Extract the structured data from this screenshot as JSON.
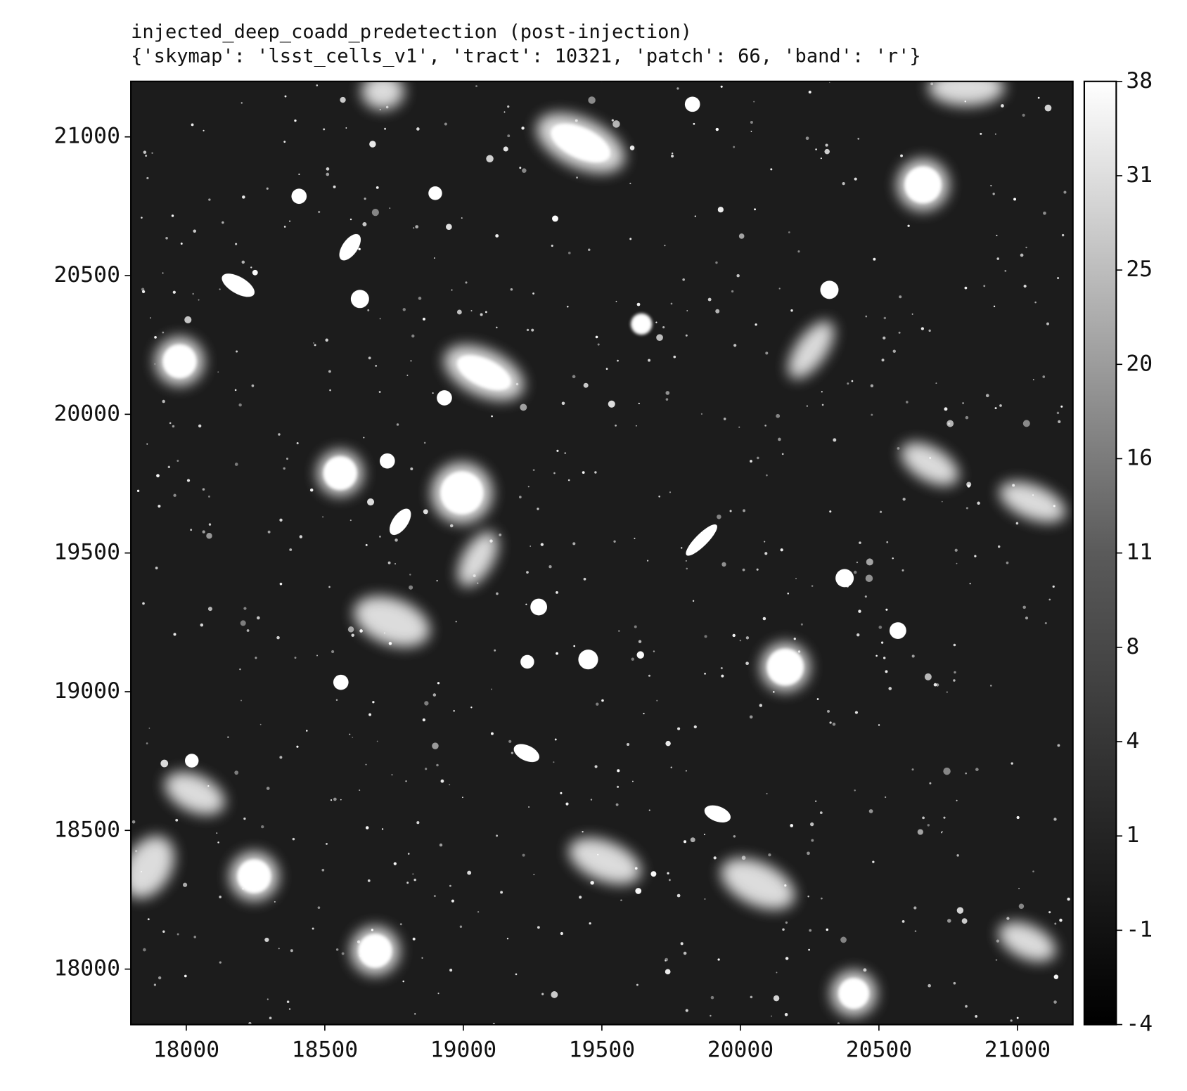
{
  "chart_data": {
    "type": "image",
    "title": "injected_deep_coadd_predetection (post-injection)",
    "subtitle": "{'skymap': 'lsst_cells_v1', 'tract': 10321, 'patch': 66, 'band': 'r'}",
    "xlim": [
      17800,
      21200
    ],
    "ylim": [
      17800,
      21200
    ],
    "xticks": [
      18000,
      18500,
      19000,
      19500,
      20000,
      20500,
      21000
    ],
    "yticks": [
      18000,
      18500,
      19000,
      19500,
      20000,
      20500,
      21000
    ],
    "colorbar": {
      "cmap": "gray",
      "lim": [
        -4,
        38
      ],
      "ticks": [
        -4,
        -1,
        1,
        4,
        8,
        11,
        16,
        20,
        25,
        31,
        38
      ]
    }
  }
}
